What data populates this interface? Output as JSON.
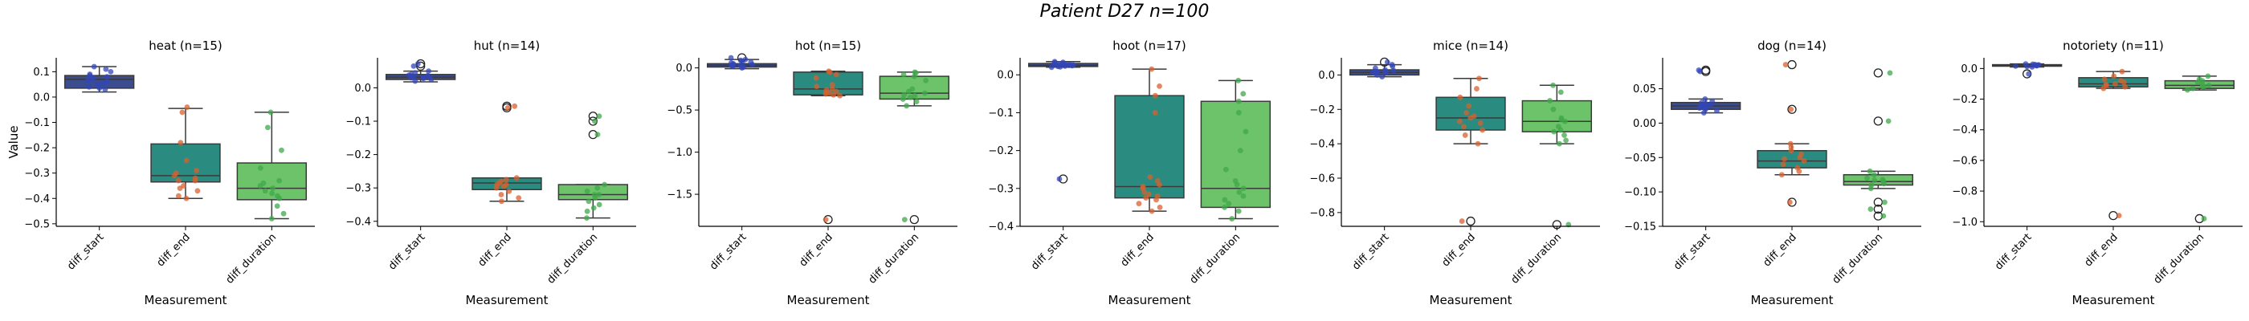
{
  "figure": {
    "title": "Patient D27 n=100"
  },
  "colors": {
    "diff_start": "#3b4d8f",
    "diff_end": "#2a8c80",
    "diff_duration": "#6cc36a",
    "start_points": "#3346b8",
    "end_points": "#d9602e",
    "duration_points": "#3fa84a"
  },
  "chart_data": [
    {
      "type": "box",
      "title": "heat (n=15)",
      "xlabel": "Measurement",
      "ylabel": "Value",
      "categories": [
        "diff_start",
        "diff_end",
        "diff_duration"
      ],
      "ylim": [
        -0.51,
        0.155
      ],
      "yticks": [
        0.1,
        0.0,
        -0.1,
        -0.2,
        -0.3,
        -0.4,
        -0.5
      ],
      "yticklabels": [
        "0.1",
        "0.0",
        "−0.1",
        "−0.2",
        "−0.3",
        "−0.4",
        "−0.5"
      ],
      "boxes": [
        {
          "q1": 0.035,
          "median": 0.07,
          "q3": 0.085,
          "wl": 0.02,
          "wh": 0.12,
          "fliers": []
        },
        {
          "q1": -0.335,
          "median": -0.31,
          "q3": -0.185,
          "wl": -0.4,
          "wh": -0.045,
          "fliers": []
        },
        {
          "q1": -0.405,
          "median": -0.36,
          "q3": -0.26,
          "wl": -0.48,
          "wh": -0.06,
          "fliers": []
        }
      ],
      "points": [
        [
          0.03,
          0.04,
          0.05,
          0.06,
          0.07,
          0.08,
          0.09,
          0.1,
          0.12,
          0.11,
          0.065,
          0.075,
          0.055,
          0.035,
          0.085
        ],
        [
          -0.04,
          -0.06,
          -0.18,
          -0.25,
          -0.3,
          -0.31,
          -0.32,
          -0.33,
          -0.35,
          -0.37,
          -0.39,
          -0.4,
          -0.29,
          -0.33,
          -0.36
        ],
        [
          -0.06,
          -0.12,
          -0.21,
          -0.28,
          -0.33,
          -0.35,
          -0.36,
          -0.37,
          -0.38,
          -0.4,
          -0.43,
          -0.46,
          -0.48,
          -0.39,
          -0.34
        ]
      ]
    },
    {
      "type": "box",
      "title": "hut (n=14)",
      "xlabel": "Measurement",
      "categories": [
        "diff_start",
        "diff_end",
        "diff_duration"
      ],
      "ylim": [
        -0.415,
        0.09
      ],
      "yticks": [
        0.0,
        -0.1,
        -0.2,
        -0.3,
        -0.4
      ],
      "yticklabels": [
        "0.0",
        "−0.1",
        "−0.2",
        "−0.3",
        "−0.4"
      ],
      "boxes": [
        {
          "q1": 0.025,
          "median": 0.032,
          "q3": 0.04,
          "wl": 0.018,
          "wh": 0.05,
          "fliers": [
            0.065,
            0.072
          ]
        },
        {
          "q1": -0.305,
          "median": -0.285,
          "q3": -0.27,
          "wl": -0.34,
          "wh": -0.27,
          "fliers": [
            -0.055,
            -0.06
          ]
        },
        {
          "q1": -0.335,
          "median": -0.32,
          "q3": -0.29,
          "wl": -0.39,
          "wh": -0.29,
          "fliers": [
            -0.085,
            -0.1,
            -0.14
          ]
        }
      ],
      "points": [
        [
          0.02,
          0.025,
          0.028,
          0.03,
          0.032,
          0.034,
          0.036,
          0.038,
          0.04,
          0.045,
          0.05,
          0.065,
          0.072,
          0.03
        ],
        [
          -0.055,
          -0.06,
          -0.27,
          -0.28,
          -0.285,
          -0.29,
          -0.295,
          -0.3,
          -0.31,
          -0.32,
          -0.33,
          -0.34,
          -0.29,
          -0.275
        ],
        [
          -0.085,
          -0.1,
          -0.14,
          -0.29,
          -0.3,
          -0.31,
          -0.32,
          -0.33,
          -0.34,
          -0.35,
          -0.36,
          -0.37,
          -0.39,
          -0.32
        ]
      ]
    },
    {
      "type": "box",
      "title": "hot (n=15)",
      "xlabel": "Measurement",
      "categories": [
        "diff_start",
        "diff_end",
        "diff_duration"
      ],
      "ylim": [
        -1.88,
        0.12
      ],
      "yticks": [
        0.0,
        -0.5,
        -1.0,
        -1.5
      ],
      "yticklabels": [
        "0.0",
        "−0.5",
        "−1.0",
        "−1.5"
      ],
      "boxes": [
        {
          "q1": 0.01,
          "median": 0.03,
          "q3": 0.05,
          "wl": -0.01,
          "wh": 0.1,
          "fliers": [
            0.12
          ]
        },
        {
          "q1": -0.32,
          "median": -0.25,
          "q3": -0.05,
          "wl": -0.33,
          "wh": -0.04,
          "fliers": [
            -1.8
          ]
        },
        {
          "q1": -0.37,
          "median": -0.3,
          "q3": -0.1,
          "wl": -0.45,
          "wh": -0.05,
          "fliers": [
            -1.8
          ]
        }
      ],
      "points": [
        [
          0.0,
          0.01,
          0.02,
          0.03,
          0.04,
          0.05,
          0.06,
          0.07,
          0.08,
          0.09,
          0.1,
          0.12,
          0.02,
          0.04,
          0.03
        ],
        [
          -0.04,
          -0.05,
          -0.08,
          -0.12,
          -0.2,
          -0.25,
          -0.28,
          -0.3,
          -0.31,
          -0.32,
          -0.33,
          -1.8,
          -0.26,
          -0.29,
          -0.22
        ],
        [
          -0.05,
          -0.06,
          -0.08,
          -0.1,
          -0.15,
          -0.25,
          -0.3,
          -0.32,
          -0.35,
          -0.37,
          -0.4,
          -0.45,
          -1.8,
          -0.28,
          -0.33
        ]
      ]
    },
    {
      "type": "box",
      "title": "hoot (n=17)",
      "xlabel": "Measurement",
      "categories": [
        "diff_start",
        "diff_end",
        "diff_duration"
      ],
      "ylim": [
        -0.4,
        0.045
      ],
      "yticks": [
        0.0,
        -0.1,
        -0.2,
        -0.3,
        -0.4
      ],
      "yticklabels": [
        "0.0",
        "−0.1",
        "−0.2",
        "−0.3",
        "−0.4"
      ],
      "boxes": [
        {
          "q1": 0.022,
          "median": 0.025,
          "q3": 0.03,
          "wl": 0.02,
          "wh": 0.035,
          "fliers": [
            -0.275
          ]
        },
        {
          "q1": -0.325,
          "median": -0.295,
          "q3": -0.055,
          "wl": -0.36,
          "wh": 0.015,
          "fliers": []
        },
        {
          "q1": -0.35,
          "median": -0.3,
          "q3": -0.07,
          "wl": -0.38,
          "wh": -0.015,
          "fliers": []
        }
      ],
      "points": [
        [
          0.02,
          0.021,
          0.022,
          0.023,
          0.024,
          0.025,
          0.026,
          0.027,
          0.028,
          0.029,
          0.03,
          0.031,
          0.032,
          0.033,
          0.035,
          -0.275,
          0.026
        ],
        [
          0.015,
          -0.03,
          -0.055,
          -0.1,
          -0.27,
          -0.28,
          -0.29,
          -0.3,
          -0.31,
          -0.32,
          -0.325,
          -0.33,
          -0.34,
          -0.35,
          -0.36,
          -0.295,
          -0.315
        ],
        [
          -0.015,
          -0.05,
          -0.07,
          -0.1,
          -0.15,
          -0.2,
          -0.25,
          -0.28,
          -0.3,
          -0.31,
          -0.32,
          -0.33,
          -0.34,
          -0.35,
          -0.36,
          -0.38,
          -0.29
        ]
      ]
    },
    {
      "type": "box",
      "title": "mice (n=14)",
      "xlabel": "Measurement",
      "categories": [
        "diff_start",
        "diff_end",
        "diff_duration"
      ],
      "ylim": [
        -0.88,
        0.1
      ],
      "yticks": [
        0.0,
        -0.2,
        -0.4,
        -0.6,
        -0.8
      ],
      "yticklabels": [
        "0.0",
        "−0.2",
        "−0.4",
        "−0.6",
        "−0.8"
      ],
      "boxes": [
        {
          "q1": 0.0,
          "median": 0.015,
          "q3": 0.03,
          "wl": -0.01,
          "wh": 0.06,
          "fliers": [
            0.075
          ]
        },
        {
          "q1": -0.32,
          "median": -0.25,
          "q3": -0.13,
          "wl": -0.4,
          "wh": -0.02,
          "fliers": [
            -0.85
          ]
        },
        {
          "q1": -0.33,
          "median": -0.27,
          "q3": -0.15,
          "wl": -0.4,
          "wh": -0.06,
          "fliers": [
            -0.87
          ]
        }
      ],
      "points": [
        [
          -0.01,
          0.0,
          0.01,
          0.015,
          0.02,
          0.025,
          0.03,
          0.04,
          0.05,
          0.06,
          0.075,
          0.012,
          0.018,
          0.022
        ],
        [
          -0.02,
          -0.08,
          -0.13,
          -0.18,
          -0.22,
          -0.25,
          -0.28,
          -0.3,
          -0.32,
          -0.35,
          -0.4,
          -0.85,
          -0.24,
          -0.27
        ],
        [
          -0.06,
          -0.1,
          -0.15,
          -0.2,
          -0.25,
          -0.27,
          -0.3,
          -0.32,
          -0.33,
          -0.35,
          -0.38,
          -0.4,
          -0.87,
          -0.26
        ]
      ]
    },
    {
      "type": "box",
      "title": "dog (n=14)",
      "xlabel": "Measurement",
      "categories": [
        "diff_start",
        "diff_end",
        "diff_duration"
      ],
      "ylim": [
        -0.15,
        0.095
      ],
      "yticks": [
        0.05,
        0.0,
        -0.05,
        -0.1,
        -0.15
      ],
      "yticklabels": [
        "0.05",
        "0.00",
        "−0.05",
        "−0.10",
        "−0.15"
      ],
      "boxes": [
        {
          "q1": 0.02,
          "median": 0.025,
          "q3": 0.03,
          "wl": 0.015,
          "wh": 0.035,
          "fliers": [
            0.075,
            0.077
          ]
        },
        {
          "q1": -0.065,
          "median": -0.055,
          "q3": -0.04,
          "wl": -0.075,
          "wh": -0.03,
          "fliers": [
            0.085,
            0.02,
            -0.115
          ]
        },
        {
          "q1": -0.09,
          "median": -0.085,
          "q3": -0.075,
          "wl": -0.095,
          "wh": -0.07,
          "fliers": [
            0.073,
            0.003,
            -0.115,
            -0.125,
            -0.135
          ]
        }
      ],
      "points": [
        [
          0.015,
          0.018,
          0.02,
          0.022,
          0.024,
          0.025,
          0.026,
          0.028,
          0.03,
          0.032,
          0.035,
          0.075,
          0.077,
          0.023
        ],
        [
          0.085,
          0.02,
          -0.03,
          -0.035,
          -0.04,
          -0.045,
          -0.05,
          -0.055,
          -0.06,
          -0.065,
          -0.07,
          -0.075,
          -0.115,
          -0.052
        ],
        [
          0.073,
          0.003,
          -0.07,
          -0.075,
          -0.08,
          -0.082,
          -0.085,
          -0.088,
          -0.09,
          -0.095,
          -0.115,
          -0.125,
          -0.135,
          -0.083
        ]
      ]
    },
    {
      "type": "box",
      "title": "notoriety (n=11)",
      "xlabel": "Measurement",
      "categories": [
        "diff_start",
        "diff_end",
        "diff_duration"
      ],
      "ylim": [
        -1.03,
        0.07
      ],
      "yticks": [
        0.0,
        -0.2,
        -0.4,
        -0.6,
        -0.8,
        -1.0
      ],
      "yticklabels": [
        "0.0",
        "−0.2",
        "−0.4",
        "−0.6",
        "−0.8",
        "−1.0"
      ],
      "boxes": [
        {
          "q1": 0.015,
          "median": 0.02,
          "q3": 0.025,
          "wl": 0.01,
          "wh": 0.03,
          "fliers": [
            -0.035
          ]
        },
        {
          "q1": -0.12,
          "median": -0.1,
          "q3": -0.06,
          "wl": -0.13,
          "wh": -0.02,
          "fliers": [
            -0.96
          ]
        },
        {
          "q1": -0.13,
          "median": -0.11,
          "q3": -0.08,
          "wl": -0.14,
          "wh": -0.05,
          "fliers": [
            -0.98
          ]
        }
      ],
      "points": [
        [
          0.01,
          0.013,
          0.016,
          0.018,
          0.02,
          0.022,
          0.024,
          0.026,
          0.028,
          0.03,
          -0.035
        ],
        [
          -0.02,
          -0.05,
          -0.07,
          -0.08,
          -0.09,
          -0.1,
          -0.11,
          -0.12,
          -0.13,
          -0.96,
          -0.105
        ],
        [
          -0.05,
          -0.07,
          -0.08,
          -0.09,
          -0.1,
          -0.11,
          -0.12,
          -0.13,
          -0.14,
          -0.98,
          -0.115
        ]
      ]
    }
  ]
}
